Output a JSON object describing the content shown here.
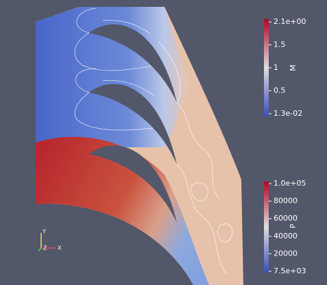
{
  "colorbars": [
    {
      "title": "M",
      "labels": [
        "2.1e+00",
        "1.5",
        "1",
        "0.5",
        "1.3e-02"
      ]
    },
    {
      "title": "P",
      "labels": [
        "1.0e+05",
        "80000",
        "60000",
        "40000",
        "20000",
        "7.5e+03"
      ]
    }
  ],
  "orientation_axes": {
    "labels": [
      "Y",
      "Z",
      "X"
    ]
  }
}
